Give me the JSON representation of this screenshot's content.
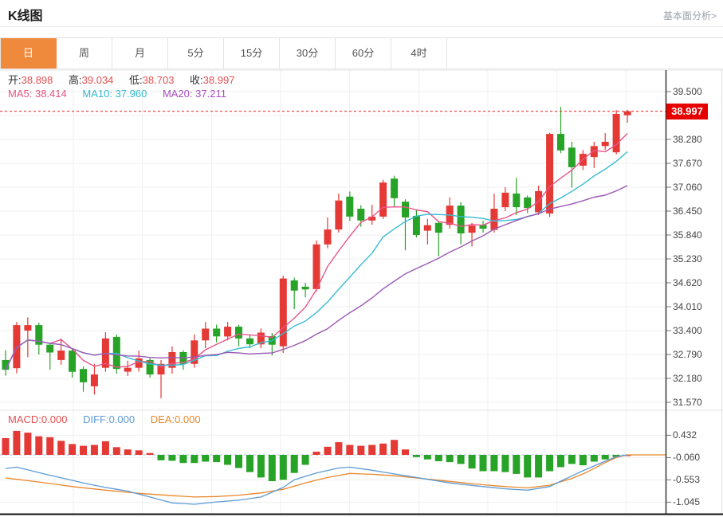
{
  "header": {
    "title": "K线图",
    "link": "基本面分析>"
  },
  "tabs": {
    "items": [
      {
        "key": "day",
        "label": "日",
        "active": true
      },
      {
        "key": "week",
        "label": "周",
        "active": false
      },
      {
        "key": "month",
        "label": "月",
        "active": false
      },
      {
        "key": "5min",
        "label": "5分",
        "active": false
      },
      {
        "key": "15min",
        "label": "15分",
        "active": false
      },
      {
        "key": "30min",
        "label": "30分",
        "active": false
      },
      {
        "key": "60min",
        "label": "60分",
        "active": false
      },
      {
        "key": "4hour",
        "label": "4时",
        "active": false
      }
    ]
  },
  "info": {
    "open_label": "开:",
    "open": "38.898",
    "high_label": "高:",
    "high": "39.034",
    "low_label": "低:",
    "low": "38.703",
    "close_label": "收:",
    "close": "38.997",
    "ma5_label": "MA5:",
    "ma5": "38.414",
    "ma10_label": "MA10:",
    "ma10": "37.960",
    "ma20_label": "MA20:",
    "ma20": "37.211"
  },
  "macd_info": {
    "macd_label": "MACD:",
    "macd": "0.000",
    "diff_label": "DIFF:",
    "diff": "0.000",
    "dea_label": "DEA:",
    "dea": "0.000"
  },
  "price_badge": "38.997",
  "price_axis_labels": [
    "39.500",
    "38.890",
    "38.280",
    "37.670",
    "37.060",
    "36.450",
    "35.840",
    "35.230",
    "34.620",
    "34.010",
    "33.400",
    "32.790",
    "32.180",
    "31.570"
  ],
  "macd_axis_labels": [
    "0.432",
    "-0.060",
    "-0.553",
    "-1.045"
  ],
  "colors": {
    "up": "#e53935",
    "down": "#27a327",
    "ma5": "#e8548b",
    "ma10": "#35bcd4",
    "ma20": "#9b59b6",
    "diff": "#5b9bd5",
    "dea": "#e8872b",
    "grid": "#efefef",
    "axis_line": "#333333",
    "bottom_line": "#111111",
    "dotted_price": "#f23030",
    "zero_dash": "#a9c6e8",
    "active_tab": "#ef8a3d",
    "badge": "#e60000"
  },
  "chart_data": {
    "type": "candlestick+macd",
    "title": "K线图",
    "panels": [
      {
        "type": "candlestick",
        "y_ticks": [
          39.5,
          38.89,
          38.28,
          37.67,
          37.06,
          36.45,
          35.84,
          35.23,
          34.62,
          34.01,
          33.4,
          32.79,
          32.18,
          31.57
        ],
        "last_price": 38.997,
        "ma_periods": [
          5,
          10,
          20
        ],
        "ohlc_summary": {
          "open": 38.898,
          "high": 39.034,
          "low": 38.703,
          "close": 38.997,
          "ma5": 38.414,
          "ma10": 37.96,
          "ma20": 37.211
        },
        "candles": [
          [
            32.65,
            32.9,
            32.25,
            32.4
          ],
          [
            32.44,
            33.62,
            32.31,
            33.54
          ],
          [
            33.4,
            33.74,
            32.72,
            33.54
          ],
          [
            33.54,
            33.6,
            32.79,
            33.04
          ],
          [
            33.04,
            33.1,
            32.4,
            32.84
          ],
          [
            32.65,
            33.2,
            32.53,
            32.89
          ],
          [
            32.89,
            32.95,
            32.2,
            32.35
          ],
          [
            32.42,
            32.48,
            31.84,
            32.08
          ],
          [
            31.98,
            32.55,
            31.77,
            32.28
          ],
          [
            32.45,
            33.36,
            32.35,
            33.2
          ],
          [
            33.24,
            33.3,
            32.3,
            32.42
          ],
          [
            32.35,
            32.63,
            32.24,
            32.45
          ],
          [
            32.45,
            32.89,
            32.35,
            32.69
          ],
          [
            32.65,
            32.7,
            32.2,
            32.28
          ],
          [
            32.28,
            32.65,
            31.67,
            32.55
          ],
          [
            32.45,
            33.0,
            32.3,
            32.85
          ],
          [
            32.85,
            32.9,
            32.4,
            32.55
          ],
          [
            32.55,
            33.3,
            32.45,
            33.15
          ],
          [
            33.15,
            33.62,
            32.95,
            33.45
          ],
          [
            33.45,
            33.55,
            33.1,
            33.25
          ],
          [
            33.25,
            33.62,
            33.15,
            33.5
          ],
          [
            33.5,
            33.55,
            33.0,
            33.2
          ],
          [
            33.2,
            33.3,
            32.95,
            33.05
          ],
          [
            33.05,
            33.45,
            32.95,
            33.35
          ],
          [
            33.26,
            33.34,
            32.76,
            33.04
          ],
          [
            33.0,
            34.8,
            32.83,
            34.73
          ],
          [
            34.68,
            34.75,
            33.95,
            34.42
          ],
          [
            34.52,
            34.62,
            34.25,
            34.45
          ],
          [
            34.46,
            35.7,
            34.4,
            35.6
          ],
          [
            35.6,
            36.29,
            35.5,
            35.98
          ],
          [
            35.98,
            36.9,
            35.9,
            36.72
          ],
          [
            36.82,
            36.95,
            36.2,
            36.31
          ],
          [
            36.51,
            36.6,
            36.05,
            36.21
          ],
          [
            36.21,
            36.61,
            36.1,
            36.31
          ],
          [
            36.31,
            37.25,
            36.25,
            37.18
          ],
          [
            37.28,
            37.35,
            36.55,
            36.78
          ],
          [
            36.69,
            36.75,
            35.45,
            36.29
          ],
          [
            36.33,
            36.49,
            35.78,
            35.84
          ],
          [
            35.95,
            36.25,
            35.6,
            36.09
          ],
          [
            36.15,
            36.2,
            35.3,
            35.9
          ],
          [
            36.1,
            36.8,
            36.0,
            36.59
          ],
          [
            36.59,
            36.68,
            35.6,
            35.88
          ],
          [
            35.9,
            36.15,
            35.55,
            36.08
          ],
          [
            36.1,
            36.2,
            35.9,
            36.0
          ],
          [
            35.97,
            36.9,
            35.9,
            36.51
          ],
          [
            36.55,
            37.06,
            36.45,
            36.92
          ],
          [
            36.9,
            37.3,
            36.35,
            36.55
          ],
          [
            36.8,
            36.85,
            36.4,
            36.53
          ],
          [
            36.42,
            37.1,
            36.35,
            36.96
          ],
          [
            36.39,
            38.45,
            36.3,
            38.42
          ],
          [
            38.42,
            39.11,
            37.93,
            38.0
          ],
          [
            38.07,
            38.22,
            37.05,
            37.57
          ],
          [
            37.61,
            38.01,
            37.5,
            37.91
          ],
          [
            37.83,
            38.22,
            37.55,
            38.11
          ],
          [
            38.11,
            38.44,
            38.01,
            38.22
          ],
          [
            37.95,
            39.03,
            37.9,
            38.93
          ],
          [
            38.898,
            39.034,
            38.703,
            38.997
          ]
        ]
      },
      {
        "type": "macd-histogram",
        "y_ticks": [
          0.432,
          -0.06,
          -0.553,
          -1.045
        ],
        "values": {
          "macd": 0.0,
          "diff": 0.0,
          "dea": 0.0
        },
        "bars": [
          0.37,
          0.53,
          0.49,
          0.41,
          0.39,
          0.31,
          0.24,
          0.2,
          0.22,
          0.3,
          0.17,
          0.12,
          0.1,
          0.04,
          -0.12,
          -0.13,
          -0.18,
          -0.18,
          -0.15,
          -0.16,
          -0.22,
          -0.29,
          -0.38,
          -0.5,
          -0.58,
          -0.55,
          -0.4,
          -0.22,
          0.07,
          0.18,
          0.28,
          0.22,
          0.2,
          0.22,
          0.25,
          0.33,
          0.12,
          -0.05,
          -0.1,
          -0.14,
          -0.16,
          -0.2,
          -0.3,
          -0.36,
          -0.36,
          -0.38,
          -0.42,
          -0.5,
          -0.5,
          -0.36,
          -0.27,
          -0.2,
          -0.23,
          -0.15,
          -0.1,
          -0.05,
          0.0
        ],
        "diff_keypoints": [
          [
            0,
            -0.3
          ],
          [
            1,
            -0.27
          ],
          [
            4,
            -0.45
          ],
          [
            7,
            -0.62
          ],
          [
            9,
            -0.72
          ],
          [
            11,
            -0.8
          ],
          [
            13,
            -0.93
          ],
          [
            15,
            -1.06
          ],
          [
            17,
            -1.09
          ],
          [
            19,
            -1.04
          ],
          [
            21,
            -1.0
          ],
          [
            23,
            -0.93
          ],
          [
            25,
            -0.72
          ],
          [
            26,
            -0.55
          ],
          [
            28,
            -0.4
          ],
          [
            30,
            -0.29
          ],
          [
            31,
            -0.27
          ],
          [
            33,
            -0.34
          ],
          [
            36,
            -0.46
          ],
          [
            38,
            -0.54
          ],
          [
            40,
            -0.62
          ],
          [
            43,
            -0.7
          ],
          [
            45,
            -0.75
          ],
          [
            47,
            -0.78
          ],
          [
            49,
            -0.7
          ],
          [
            50,
            -0.58
          ],
          [
            52,
            -0.35
          ],
          [
            54,
            -0.14
          ],
          [
            55,
            -0.04
          ],
          [
            56,
            0.0
          ]
        ],
        "dea_keypoints": [
          [
            0,
            -0.51
          ],
          [
            3,
            -0.6
          ],
          [
            6,
            -0.7
          ],
          [
            9,
            -0.78
          ],
          [
            12,
            -0.85
          ],
          [
            15,
            -0.9
          ],
          [
            17,
            -0.93
          ],
          [
            19,
            -0.92
          ],
          [
            21,
            -0.89
          ],
          [
            23,
            -0.84
          ],
          [
            25,
            -0.76
          ],
          [
            27,
            -0.62
          ],
          [
            29,
            -0.5
          ],
          [
            31,
            -0.41
          ],
          [
            33,
            -0.43
          ],
          [
            35,
            -0.46
          ],
          [
            37,
            -0.51
          ],
          [
            39,
            -0.56
          ],
          [
            41,
            -0.61
          ],
          [
            43,
            -0.66
          ],
          [
            45,
            -0.7
          ],
          [
            47,
            -0.73
          ],
          [
            49,
            -0.67
          ],
          [
            51,
            -0.52
          ],
          [
            52,
            -0.42
          ],
          [
            53,
            -0.3
          ],
          [
            54,
            -0.17
          ],
          [
            55,
            -0.06
          ],
          [
            56,
            0.0
          ]
        ]
      }
    ]
  }
}
